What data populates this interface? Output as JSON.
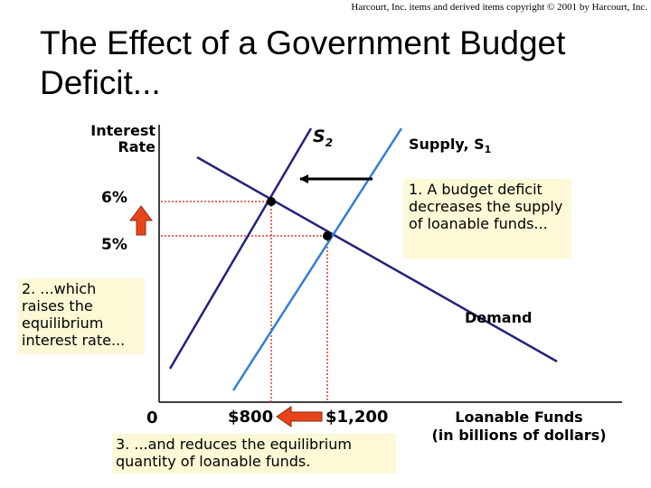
{
  "copyright": "Harcourt, Inc. items and derived items copyright © 2001 by Harcourt, Inc.",
  "title": "The Effect of a Government Budget Deficit...",
  "chart": {
    "y_axis_label_line1": "Interest",
    "y_axis_label_line2": "Rate",
    "x_axis_label_line1": "Loanable Funds",
    "x_axis_label_line2": "(in billions of dollars)",
    "curve_labels": {
      "s2": "S",
      "s2_sub": "2",
      "s1": "Supply, S",
      "s1_sub": "1",
      "demand": "Demand"
    },
    "y_ticks": {
      "high": "6%",
      "low": "5%"
    },
    "x_ticks": {
      "origin": "0",
      "q_new": "$800",
      "q_old": "$1,200"
    },
    "colors": {
      "supply_s1": "#2f7fd8",
      "supply_s2": "#22227a",
      "demand": "#22227a",
      "guide_lines": "#e03a2a",
      "highlight_arrow": "#e8441c",
      "shift_arrow": "#000000",
      "note_background": "#fdf8d6"
    }
  },
  "chart_data": {
    "type": "line",
    "series": [
      {
        "name": "Supply, S1"
      },
      {
        "name": "S2"
      },
      {
        "name": "Demand"
      }
    ],
    "equilibria": [
      {
        "interest_rate": "5%",
        "quantity": "$1,200"
      },
      {
        "interest_rate": "6%",
        "quantity": "$800"
      }
    ]
  },
  "notes": {
    "note1": "1. A budget deficit decreases the supply of loanable funds...",
    "note2": "2. ...which raises the equilibrium interest rate...",
    "note3": "3. ...and reduces the equilibrium quantity of loanable funds."
  }
}
